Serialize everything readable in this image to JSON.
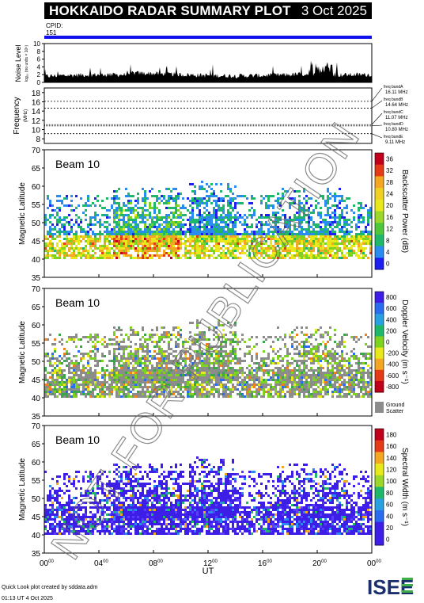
{
  "header": {
    "title": "HOKKAIDO RADAR SUMMARY PLOT",
    "date": "3 Oct 2025",
    "cpid_label": "CPID:",
    "cpid_value": "151"
  },
  "noise_panel": {
    "ylabel": "Noise Level",
    "ylabel_unit": "log₁₀ (no units × 10⁵)",
    "ticks": [
      "10",
      "8",
      "6",
      "4",
      "2",
      "0"
    ]
  },
  "freq_panel": {
    "ylabel": "Frequency",
    "ylabel_unit": "(MHz)",
    "ticks": [
      "18",
      "16",
      "14",
      "12",
      "10",
      "8"
    ],
    "bands": [
      {
        "name": "freq bandA",
        "value": "16.11 MHz"
      },
      {
        "name": "freq bandB",
        "value": "14.64 MHz"
      },
      {
        "name": "freq bandC",
        "value": "11.07 MHz"
      },
      {
        "name": "freq bandD",
        "value": "10.80 MHz"
      },
      {
        "name": "freq bandE",
        "value": "9.11 MHz"
      }
    ]
  },
  "panels": [
    {
      "beam": "Beam 10",
      "ylabel": "Magnetic Latitude",
      "cb_label": "Backscatter Power (dB)",
      "cb_ticks": [
        "36",
        "32",
        "28",
        "24",
        "20",
        "16",
        "12",
        "8",
        "4",
        "0"
      ]
    },
    {
      "beam": "Beam 10",
      "ylabel": "Magnetic Latitude",
      "cb_label": "Doppler Velocity (m s⁻¹)",
      "cb_ticks": [
        "800",
        "600",
        "400",
        "200",
        "0",
        "-200",
        "-400",
        "-600",
        "-800"
      ],
      "ground_label": "Ground",
      "scatter_label": "Scatter"
    },
    {
      "beam": "Beam 10",
      "ylabel": "Magnetic Latitude",
      "cb_label": "Spectral Width (m s⁻¹)",
      "cb_ticks": [
        "180",
        "160",
        "140",
        "120",
        "100",
        "80",
        "60",
        "40",
        "20",
        "0"
      ]
    }
  ],
  "lat_ticks": [
    "70",
    "65",
    "60",
    "55",
    "50",
    "45",
    "40",
    "35"
  ],
  "time_ticks": [
    {
      "h": "00",
      "m": "00"
    },
    {
      "h": "04",
      "m": "00"
    },
    {
      "h": "08",
      "m": "00"
    },
    {
      "h": "12",
      "m": "00"
    },
    {
      "h": "16",
      "m": "00"
    },
    {
      "h": "20",
      "m": "00"
    },
    {
      "h": "00",
      "m": "00"
    }
  ],
  "xlabel": "UT",
  "footer": {
    "line1": "Quick Look plot created by sddata.adm",
    "line2": "01:13 UT  4 Oct 2025"
  },
  "watermark": "NOT FOR PUBLICATION",
  "logo_text": "ISEE",
  "colors": {
    "cpid_bar": "#1010ee",
    "ground_scatter": "#8c8c8c"
  },
  "chart_data": [
    {
      "type": "area",
      "title": "Noise Level",
      "x_range_ut_hours": [
        0,
        24
      ],
      "ylim": [
        0,
        10
      ]
    },
    {
      "type": "line",
      "title": "Frequency",
      "x_range_ut_hours": [
        0,
        24
      ],
      "ylim": [
        7,
        19
      ],
      "band_values_mhz": [
        16.11,
        14.64,
        11.07,
        10.8,
        9.11
      ]
    },
    {
      "type": "heatmap",
      "title": "Backscatter Power (dB)",
      "x_range_ut_hours": [
        0,
        24
      ],
      "ylim": [
        35,
        70
      ],
      "zlim": [
        0,
        40
      ]
    },
    {
      "type": "heatmap",
      "title": "Doppler Velocity (m s⁻¹)",
      "x_range_ut_hours": [
        0,
        24
      ],
      "ylim": [
        35,
        70
      ],
      "zlim": [
        -900,
        900
      ]
    },
    {
      "type": "heatmap",
      "title": "Spectral Width (m s⁻¹)",
      "x_range_ut_hours": [
        0,
        24
      ],
      "ylim": [
        35,
        70
      ],
      "zlim": [
        0,
        190
      ]
    }
  ]
}
